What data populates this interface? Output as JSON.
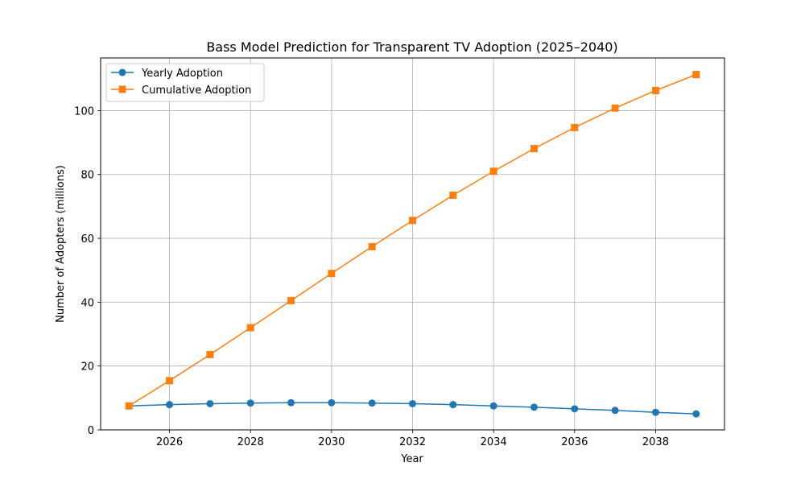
{
  "chart_data": {
    "type": "line",
    "title": "Bass Model Prediction for Transparent TV Adoption (2025–2040)",
    "xlabel": "Year",
    "ylabel": "Number of Adopters (millions)",
    "x": [
      2025,
      2026,
      2027,
      2028,
      2029,
      2030,
      2031,
      2032,
      2033,
      2034,
      2035,
      2036,
      2037,
      2038,
      2039
    ],
    "xlim": [
      2024.3,
      2039.7
    ],
    "ylim": [
      0,
      116.5
    ],
    "x_ticks": [
      "2026",
      "2028",
      "2030",
      "2032",
      "2034",
      "2036",
      "2038"
    ],
    "y_ticks": [
      "0",
      "20",
      "40",
      "60",
      "80",
      "100"
    ],
    "grid": true,
    "legend_position": "upper-left",
    "series": [
      {
        "name": "Yearly Adoption",
        "color": "#1f77b4",
        "marker": "circle",
        "values": [
          7.5,
          7.9,
          8.2,
          8.4,
          8.5,
          8.5,
          8.4,
          8.2,
          7.9,
          7.5,
          7.1,
          6.6,
          6.1,
          5.5,
          5.0
        ]
      },
      {
        "name": "Cumulative Adoption",
        "color": "#ff7f0e",
        "marker": "square",
        "values": [
          7.5,
          15.4,
          23.6,
          32.0,
          40.5,
          49.0,
          57.4,
          65.6,
          73.5,
          81.0,
          88.1,
          94.7,
          100.8,
          106.3,
          111.3
        ]
      }
    ]
  }
}
